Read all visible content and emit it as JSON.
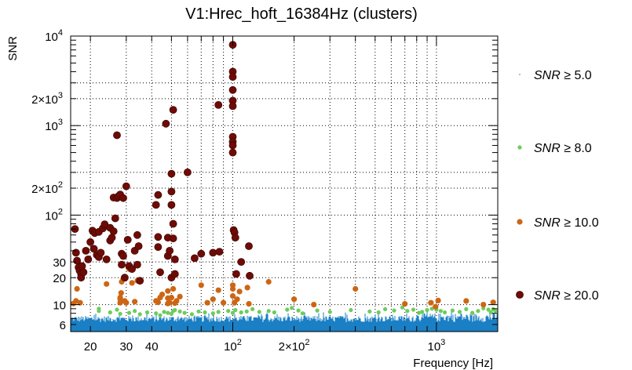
{
  "chart_data": {
    "type": "scatter",
    "title": "V1:Hrec_hoft_16384Hz (clusters)",
    "xlabel": "Frequency [Hz]",
    "ylabel": "SNR",
    "x_scale": "log",
    "y_scale": "log",
    "xlim": [
      16,
      2000
    ],
    "ylim": [
      5,
      10000
    ],
    "grid": true,
    "legend_position": "right",
    "x_tick_labels": [
      {
        "value": 20,
        "label": "20"
      },
      {
        "value": 30,
        "label": "30"
      },
      {
        "value": 40,
        "label": "40"
      },
      {
        "value": 100,
        "label": "10",
        "sup": "2"
      },
      {
        "value": 200,
        "label": "2×10",
        "sup": "2"
      },
      {
        "value": 1000,
        "label": "10",
        "sup": "3"
      }
    ],
    "y_tick_labels": [
      {
        "value": 6,
        "label": "6"
      },
      {
        "value": 10,
        "label": "10"
      },
      {
        "value": 20,
        "label": "20"
      },
      {
        "value": 30,
        "label": "30"
      },
      {
        "value": 100,
        "label": "10",
        "sup": "2"
      },
      {
        "value": 200,
        "label": "2×10",
        "sup": "2"
      },
      {
        "value": 1000,
        "label": "10",
        "sup": "3"
      },
      {
        "value": 2000,
        "label": "2×10",
        "sup": "3"
      },
      {
        "value": 10000,
        "label": "10",
        "sup": "4"
      }
    ],
    "series": [
      {
        "name": "SNR ≥ 5.0",
        "legend_var": "SNR",
        "legend_rest": " ≥ 5.0",
        "color": "#1a7fc4",
        "marker": "dot",
        "note_dense": true,
        "points": []
      },
      {
        "name": "SNR ≥ 8.0",
        "legend_var": "SNR",
        "legend_rest": " ≥ 8.0",
        "color": "#6ccc5c",
        "marker": "small-circle",
        "points": [
          [
            22,
            8.5
          ],
          [
            22,
            9
          ],
          [
            25,
            8.2
          ],
          [
            27,
            8.8
          ],
          [
            28,
            7.9
          ],
          [
            31,
            8.1
          ],
          [
            33,
            8.5
          ],
          [
            35,
            7.8
          ],
          [
            38,
            8.2
          ],
          [
            42,
            8.0
          ],
          [
            44,
            7.6
          ],
          [
            46,
            8.3
          ],
          [
            48,
            8.1
          ],
          [
            50,
            7.9
          ],
          [
            51,
            8.5
          ],
          [
            52,
            8.7
          ],
          [
            55,
            8.4
          ],
          [
            58,
            8.1
          ],
          [
            63,
            7.8
          ],
          [
            68,
            8.4
          ],
          [
            73,
            8.2
          ],
          [
            80,
            8.0
          ],
          [
            85,
            8.3
          ],
          [
            95,
            8.5
          ],
          [
            100,
            8.1
          ],
          [
            103,
            8.7
          ],
          [
            110,
            8.2
          ],
          [
            117,
            8.4
          ],
          [
            125,
            8.9
          ],
          [
            135,
            8.3
          ],
          [
            150,
            8.5
          ],
          [
            160,
            8.2
          ],
          [
            185,
            8.8
          ],
          [
            195,
            9.2
          ],
          [
            210,
            8.6
          ],
          [
            220,
            8.0
          ],
          [
            260,
            8.6
          ],
          [
            300,
            8.3
          ],
          [
            380,
            8.7
          ],
          [
            470,
            8.4
          ],
          [
            520,
            8.2
          ],
          [
            560,
            8.9
          ],
          [
            620,
            8.6
          ],
          [
            680,
            9.3
          ],
          [
            720,
            8.5
          ],
          [
            770,
            8.8
          ],
          [
            820,
            8.1
          ],
          [
            850,
            8.3
          ],
          [
            900,
            8.7
          ],
          [
            950,
            9.0
          ],
          [
            1000,
            8.8
          ],
          [
            1050,
            8.5
          ],
          [
            1100,
            8.2
          ],
          [
            1200,
            8.6
          ],
          [
            1300,
            8.3
          ],
          [
            1400,
            8.9
          ],
          [
            1500,
            8.1
          ],
          [
            1600,
            8.5
          ],
          [
            1700,
            9.1
          ],
          [
            1800,
            8.8
          ],
          [
            1850,
            8.2
          ],
          [
            1900,
            8.9
          ],
          [
            1950,
            8.5
          ]
        ]
      },
      {
        "name": "SNR ≥ 10.0",
        "legend_var": "SNR",
        "legend_rest": " ≥ 10.0",
        "color": "#cc6614",
        "marker": "circle",
        "points": [
          [
            16.5,
            10.3
          ],
          [
            17,
            11
          ],
          [
            17.2,
            15
          ],
          [
            17.8,
            10.5
          ],
          [
            18,
            23
          ],
          [
            24,
            17
          ],
          [
            28,
            10.5
          ],
          [
            28,
            11.5
          ],
          [
            28,
            12
          ],
          [
            28.3,
            13.5
          ],
          [
            28.5,
            18
          ],
          [
            29,
            19.5
          ],
          [
            29.5,
            11
          ],
          [
            30,
            10.5
          ],
          [
            31,
            25
          ],
          [
            32,
            17.5
          ],
          [
            33,
            10.8
          ],
          [
            34,
            18.5
          ],
          [
            42,
            11
          ],
          [
            43,
            10.6
          ],
          [
            44,
            12
          ],
          [
            45,
            13
          ],
          [
            48,
            10.3
          ],
          [
            48,
            11.8
          ],
          [
            48,
            14.2
          ],
          [
            49,
            10.5
          ],
          [
            50,
            12
          ],
          [
            51,
            15
          ],
          [
            52,
            10.4
          ],
          [
            53,
            11
          ],
          [
            55,
            12.3
          ],
          [
            70,
            16.5
          ],
          [
            75,
            10.5
          ],
          [
            80,
            11.5
          ],
          [
            85,
            14.5
          ],
          [
            90,
            10.5
          ],
          [
            100,
            12.5
          ],
          [
            100,
            15
          ],
          [
            100,
            16.5
          ],
          [
            102,
            10.5
          ],
          [
            105,
            11.5
          ],
          [
            108,
            14
          ],
          [
            118,
            15.5
          ],
          [
            120,
            10.2
          ],
          [
            150,
            18
          ],
          [
            200,
            11.5
          ],
          [
            250,
            10
          ],
          [
            400,
            15
          ],
          [
            700,
            10.2
          ],
          [
            940,
            10.5
          ],
          [
            990,
            9.5
          ],
          [
            1020,
            11.1
          ],
          [
            1400,
            11
          ],
          [
            1700,
            10
          ],
          [
            1900,
            10.6
          ]
        ]
      },
      {
        "name": "SNR ≥ 20.0",
        "legend_var": "SNR",
        "legend_rest": " ≥ 20.0",
        "color": "#6e0b06",
        "marker": "big-circle",
        "points": [
          [
            16.8,
            70
          ],
          [
            17,
            38
          ],
          [
            17.2,
            31
          ],
          [
            17.5,
            26
          ],
          [
            17.7,
            24
          ],
          [
            18,
            22
          ],
          [
            18,
            20
          ],
          [
            18.2,
            27
          ],
          [
            18.5,
            23
          ],
          [
            19,
            40
          ],
          [
            19.5,
            32
          ],
          [
            20,
            50
          ],
          [
            20.5,
            67
          ],
          [
            20.8,
            42
          ],
          [
            21,
            63
          ],
          [
            21.5,
            36
          ],
          [
            22,
            65
          ],
          [
            22,
            34
          ],
          [
            22.5,
            38
          ],
          [
            23,
            71
          ],
          [
            23.5,
            79
          ],
          [
            24,
            32
          ],
          [
            25,
            52
          ],
          [
            25,
            72
          ],
          [
            25.5,
            56
          ],
          [
            26,
            66
          ],
          [
            26,
            157
          ],
          [
            26.5,
            92
          ],
          [
            27,
            155
          ],
          [
            27,
            780
          ],
          [
            27.5,
            163
          ],
          [
            28,
            170
          ],
          [
            28.5,
            37
          ],
          [
            28.5,
            28
          ],
          [
            29,
            155
          ],
          [
            29,
            35
          ],
          [
            29.5,
            20
          ],
          [
            30,
            210
          ],
          [
            30.5,
            53
          ],
          [
            31,
            27
          ],
          [
            32,
            25
          ],
          [
            33,
            40
          ],
          [
            34,
            60
          ],
          [
            34,
            28
          ],
          [
            34.5,
            45
          ],
          [
            35,
            18.5
          ],
          [
            42,
            130
          ],
          [
            43,
            168
          ],
          [
            43,
            57
          ],
          [
            43,
            44
          ],
          [
            44,
            23
          ],
          [
            47,
            1050
          ],
          [
            48,
            56
          ],
          [
            48,
            35
          ],
          [
            49,
            40
          ],
          [
            50,
            290
          ],
          [
            50,
            183
          ],
          [
            50,
            130
          ],
          [
            50,
            20
          ],
          [
            51,
            1500
          ],
          [
            51,
            80
          ],
          [
            51,
            55
          ],
          [
            52,
            32
          ],
          [
            52,
            22
          ],
          [
            60,
            300
          ],
          [
            65,
            33
          ],
          [
            70,
            37
          ],
          [
            80,
            38
          ],
          [
            85,
            1700
          ],
          [
            86,
            39
          ],
          [
            100,
            8000
          ],
          [
            100,
            4000
          ],
          [
            100,
            3500
          ],
          [
            100,
            2500
          ],
          [
            100,
            1900
          ],
          [
            100,
            1650
          ],
          [
            100,
            750
          ],
          [
            100,
            660
          ],
          [
            100,
            600
          ],
          [
            100,
            500
          ],
          [
            101,
            68
          ],
          [
            102,
            64
          ],
          [
            103,
            56
          ],
          [
            104,
            22
          ],
          [
            110,
            30
          ],
          [
            120,
            45
          ],
          [
            121,
            21
          ]
        ]
      }
    ]
  }
}
